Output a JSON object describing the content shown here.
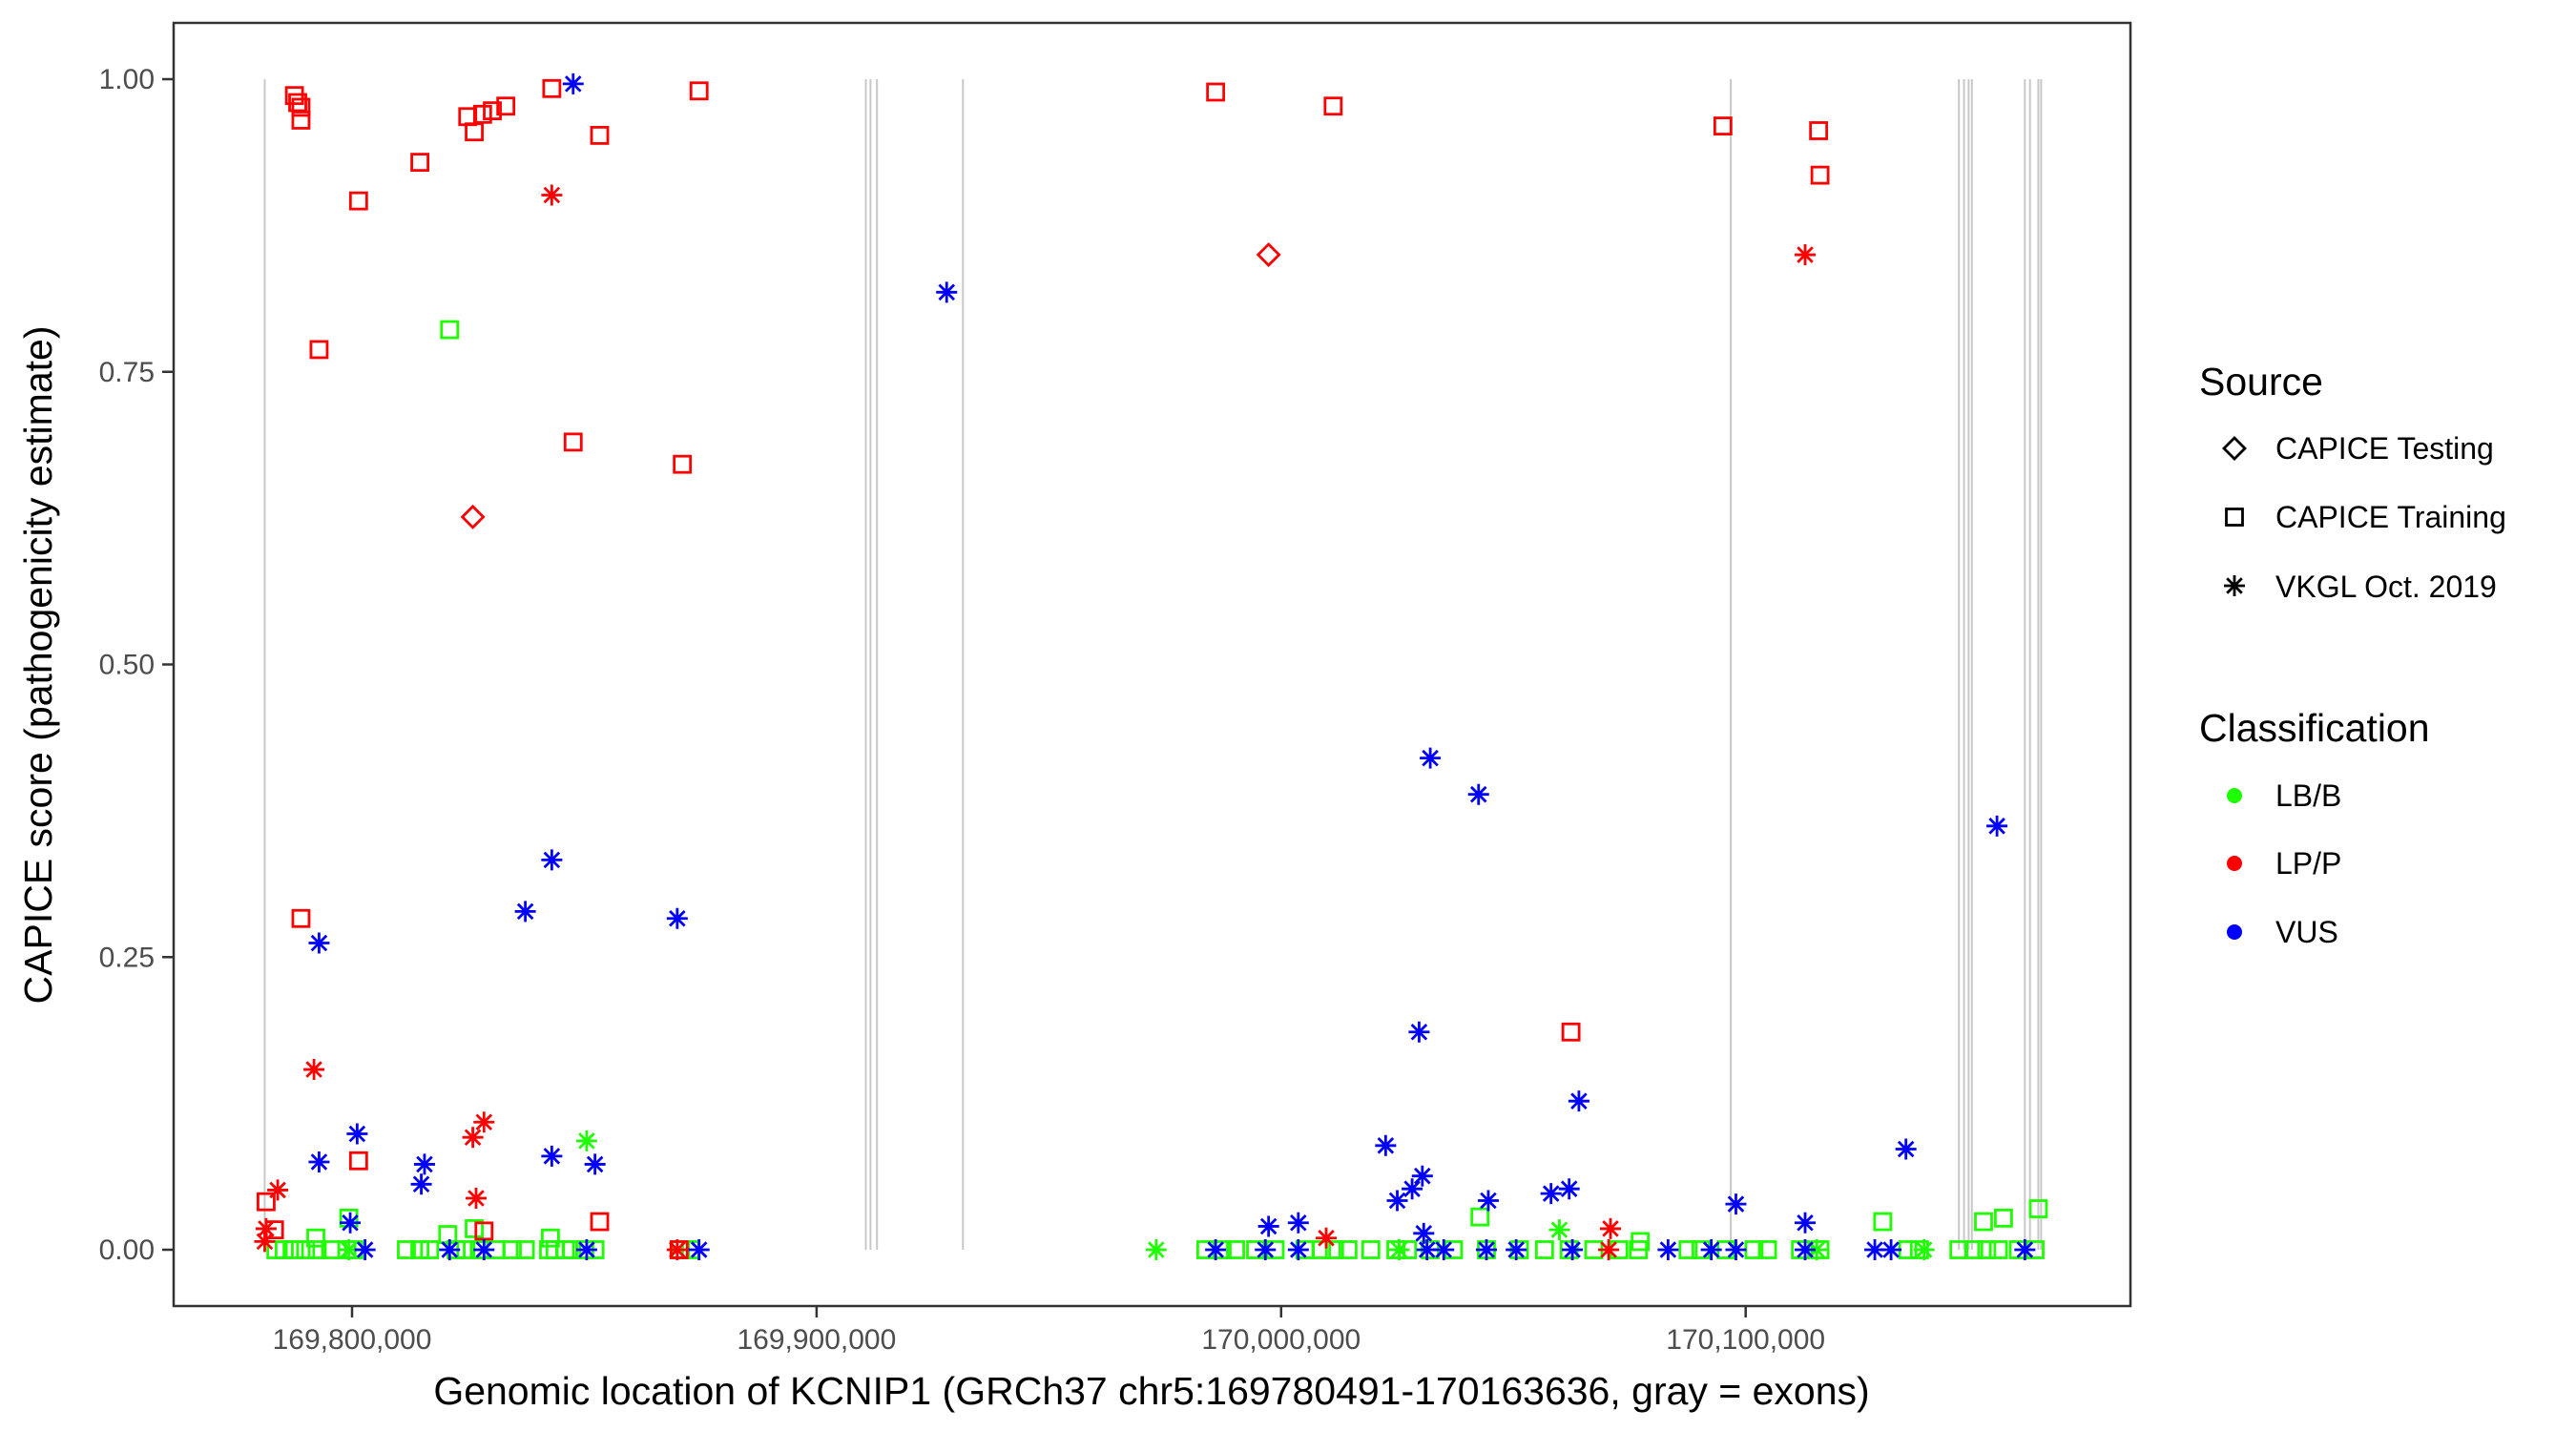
{
  "chart_data": {
    "type": "scatter",
    "xlabel": "Genomic location of KCNIP1 (GRCh37 chr5:169780491-170163636, gray = exons)",
    "ylabel": "CAPICE score (pathogenicity estimate)",
    "xlim": [
      169762000,
      170171000
    ],
    "ylim": [
      -0.046,
      1.05
    ],
    "xticks": [
      169800000,
      169900000,
      170000000,
      170100000
    ],
    "xtick_labels": [
      "169,800,000",
      "169,900,000",
      "170,000,000",
      "170,100,000"
    ],
    "yticks": [
      0,
      0.25,
      0.5,
      0.75,
      1.0
    ],
    "ytick_labels": [
      "0.00",
      "0.25",
      "0.50",
      "0.75",
      "1.00"
    ],
    "grid": false,
    "legend_position": "right",
    "legend": {
      "source_title": "Source",
      "sources": [
        {
          "name": "CAPICE Testing",
          "shape": "diamond"
        },
        {
          "name": "CAPICE Training",
          "shape": "square"
        },
        {
          "name": "VKGL Oct. 2019",
          "shape": "asterisk"
        }
      ],
      "classification_title": "Classification",
      "classifications": [
        {
          "name": "LB/B",
          "color": "#1eff00"
        },
        {
          "name": "LP/P",
          "color": "#ff0000"
        },
        {
          "name": "VUS",
          "color": "#0000ff"
        }
      ]
    },
    "exons": [
      169781200,
      169910600,
      169911600,
      169913000,
      169931500,
      170096800,
      170145900,
      170147000,
      170148000,
      170148700,
      170160100,
      170161200,
      170163000,
      170163600
    ],
    "series": [
      {
        "source": "CAPICE Training",
        "classification": "LB/B",
        "points": [
          [
            169783600,
            0
          ],
          [
            169785400,
            0
          ],
          [
            169787600,
            0
          ],
          [
            169790000,
            0
          ],
          [
            169792500,
            0
          ],
          [
            169795400,
            0
          ],
          [
            169798900,
            0
          ],
          [
            169800400,
            0
          ],
          [
            169811700,
            0
          ],
          [
            169814600,
            0
          ],
          [
            169816700,
            0
          ],
          [
            169822400,
            0
          ],
          [
            169824500,
            0
          ],
          [
            169827400,
            0
          ],
          [
            169830900,
            0
          ],
          [
            169834500,
            0
          ],
          [
            169837300,
            0
          ],
          [
            169842300,
            0
          ],
          [
            169843700,
            0
          ],
          [
            169845900,
            0
          ],
          [
            169847300,
            0
          ],
          [
            169850100,
            0
          ],
          [
            169852300,
            0
          ],
          [
            169870700,
            0
          ],
          [
            169872900,
            0
          ],
          [
            169983800,
            0
          ],
          [
            169987300,
            0
          ],
          [
            169990200,
            0
          ],
          [
            169994500,
            0
          ],
          [
            169998700,
            0
          ],
          [
            170005100,
            0
          ],
          [
            170008700,
            0
          ],
          [
            170011500,
            0
          ],
          [
            170014400,
            0
          ],
          [
            170019300,
            0
          ],
          [
            170024700,
            0
          ],
          [
            170027200,
            0
          ],
          [
            170032100,
            0
          ],
          [
            170037100,
            0
          ],
          [
            170044200,
            0
          ],
          [
            170051300,
            0
          ],
          [
            170056700,
            0
          ],
          [
            170062000,
            0
          ],
          [
            170067300,
            0
          ],
          [
            170072700,
            0
          ],
          [
            170076900,
            0
          ],
          [
            170087600,
            0
          ],
          [
            170090400,
            0
          ],
          [
            170095800,
            0
          ],
          [
            170101800,
            0
          ],
          [
            170104700,
            0
          ],
          [
            170111800,
            0
          ],
          [
            170116000,
            0
          ],
          [
            170134900,
            0
          ],
          [
            170137400,
            0
          ],
          [
            170145900,
            0
          ],
          [
            170149100,
            0
          ],
          [
            170151900,
            0
          ],
          [
            170154400,
            0
          ],
          [
            170158700,
            0
          ],
          [
            170162300,
            0
          ],
          [
            169821000,
            0.786
          ],
          [
            169799300,
            0.027
          ],
          [
            169826300,
            0.018
          ],
          [
            169820600,
            0.013
          ],
          [
            169842700,
            0.01
          ],
          [
            169792200,
            0.01
          ],
          [
            170042800,
            0.028
          ],
          [
            170129500,
            0.024
          ],
          [
            170151200,
            0.024
          ],
          [
            170155500,
            0.027
          ],
          [
            170163000,
            0.035
          ],
          [
            170077300,
            0.007
          ]
        ]
      },
      {
        "source": "VKGL Oct. 2019",
        "classification": "LB/B",
        "points": [
          [
            169850500,
            0.093
          ],
          [
            170059900,
            0.017
          ],
          [
            169973100,
            0
          ],
          [
            169799300,
            0
          ],
          [
            170025400,
            0
          ],
          [
            170138400,
            0
          ],
          [
            170115300,
            0
          ]
        ]
      },
      {
        "source": "CAPICE Training",
        "classification": "LP/P",
        "points": [
          [
            169787600,
            0.986
          ],
          [
            169788300,
            0.98
          ],
          [
            169789000,
            0.976
          ],
          [
            169789000,
            0.965
          ],
          [
            169801400,
            0.896
          ],
          [
            169792900,
            0.769
          ],
          [
            169814600,
            0.929
          ],
          [
            169824900,
            0.968
          ],
          [
            169826300,
            0.955
          ],
          [
            169828100,
            0.97
          ],
          [
            169830200,
            0.973
          ],
          [
            169833100,
            0.977
          ],
          [
            169843000,
            0.992
          ],
          [
            169853300,
            0.952
          ],
          [
            169874700,
            0.99
          ],
          [
            169847600,
            0.69
          ],
          [
            169871100,
            0.671
          ],
          [
            169789000,
            0.283
          ],
          [
            169781500,
            0.041
          ],
          [
            169801400,
            0.076
          ],
          [
            169853300,
            0.024
          ],
          [
            169828400,
            0.016
          ],
          [
            169783300,
            0.017
          ],
          [
            169870400,
            0
          ],
          [
            169985900,
            0.989
          ],
          [
            170011200,
            0.977
          ],
          [
            170095100,
            0.96
          ],
          [
            170115700,
            0.956
          ],
          [
            170116000,
            0.918
          ],
          [
            170062400,
            0.186
          ]
        ]
      },
      {
        "source": "CAPICE Testing",
        "classification": "LP/P",
        "points": [
          [
            169826000,
            0.626
          ],
          [
            169997300,
            0.85
          ]
        ]
      },
      {
        "source": "VKGL Oct. 2019",
        "classification": "LP/P",
        "points": [
          [
            169843000,
            0.901
          ],
          [
            169791800,
            0.154
          ],
          [
            169784000,
            0.051
          ],
          [
            169781500,
            0.018
          ],
          [
            169781200,
            0.007
          ],
          [
            169826000,
            0.096
          ],
          [
            169828400,
            0.109
          ],
          [
            169826700,
            0.044
          ],
          [
            169870000,
            0
          ],
          [
            170112800,
            0.85
          ],
          [
            170070900,
            0.018
          ],
          [
            170070500,
            0
          ],
          [
            170009700,
            0.01
          ]
        ]
      },
      {
        "source": "VKGL Oct. 2019",
        "classification": "VUS",
        "points": [
          [
            169847600,
            0.996
          ],
          [
            169928000,
            0.818
          ],
          [
            169792900,
            0.262
          ],
          [
            169843000,
            0.333
          ],
          [
            169837300,
            0.289
          ],
          [
            169870000,
            0.283
          ],
          [
            169792900,
            0.075
          ],
          [
            169801100,
            0.099
          ],
          [
            169815600,
            0.073
          ],
          [
            169814900,
            0.056
          ],
          [
            169843000,
            0.08
          ],
          [
            169852300,
            0.073
          ],
          [
            169799600,
            0.023
          ],
          [
            170032100,
            0.42
          ],
          [
            170042500,
            0.389
          ],
          [
            170029700,
            0.186
          ],
          [
            170064100,
            0.127
          ],
          [
            170022500,
            0.089
          ],
          [
            170030400,
            0.063
          ],
          [
            170028200,
            0.052
          ],
          [
            170025000,
            0.042
          ],
          [
            170044600,
            0.042
          ],
          [
            170058100,
            0.048
          ],
          [
            170062000,
            0.052
          ],
          [
            170097900,
            0.039
          ],
          [
            170112800,
            0.023
          ],
          [
            170134500,
            0.086
          ],
          [
            170154100,
            0.362
          ],
          [
            169997300,
            0.02
          ],
          [
            170003700,
            0.023
          ],
          [
            170030700,
            0.014
          ],
          [
            169802800,
            0
          ],
          [
            169821000,
            0
          ],
          [
            169828400,
            0
          ],
          [
            169850500,
            0
          ],
          [
            169874700,
            0
          ],
          [
            169985900,
            0
          ],
          [
            169996600,
            0
          ],
          [
            170003700,
            0
          ],
          [
            170031400,
            0
          ],
          [
            170035000,
            0
          ],
          [
            170044200,
            0
          ],
          [
            170050600,
            0
          ],
          [
            170062700,
            0
          ],
          [
            170083300,
            0
          ],
          [
            170092600,
            0
          ],
          [
            170097900,
            0
          ],
          [
            170112800,
            0
          ],
          [
            170127800,
            0
          ],
          [
            170131300,
            0
          ],
          [
            170160100,
            0
          ]
        ]
      }
    ]
  }
}
